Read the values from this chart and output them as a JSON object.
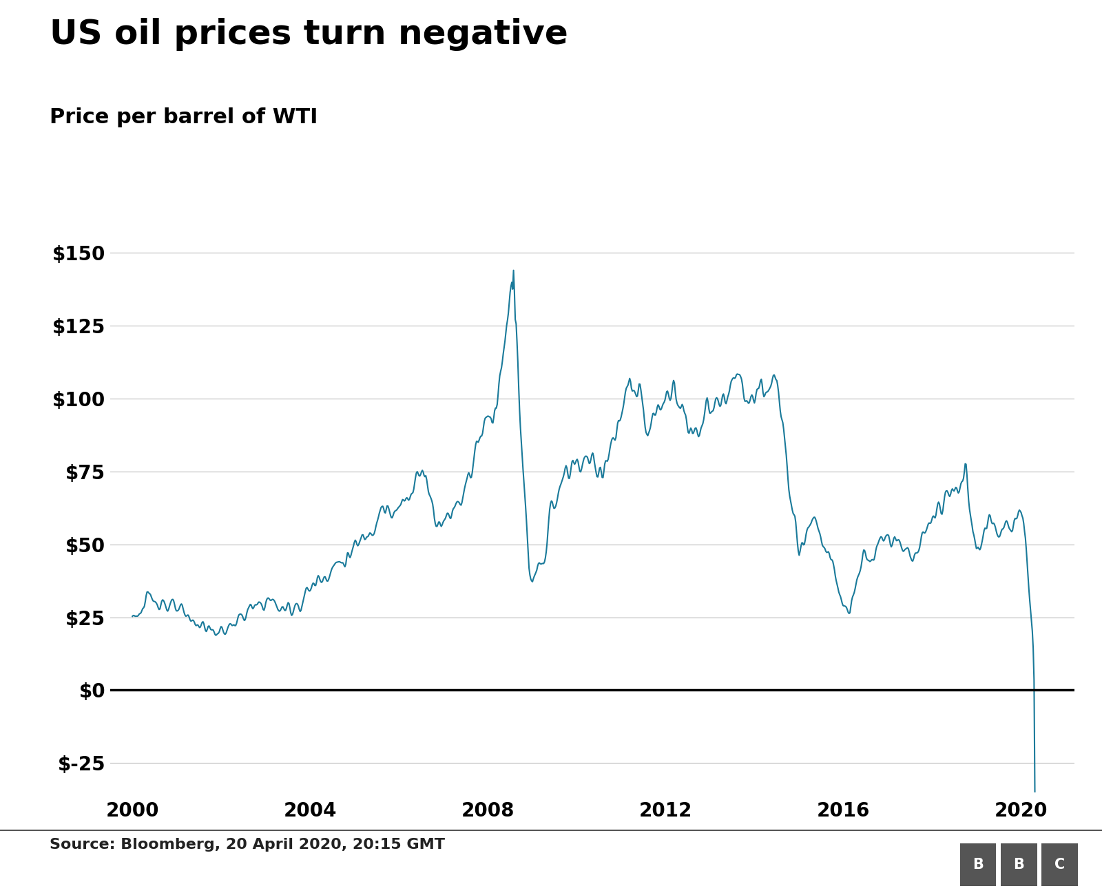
{
  "title": "US oil prices turn negative",
  "subtitle": "Price per barrel of WTI",
  "source_text": "Source: Bloomberg, 20 April 2020, 20:15 GMT",
  "line_color": "#1a7a9a",
  "background_color": "#ffffff",
  "zero_line_color": "#000000",
  "grid_color": "#bbbbbb",
  "title_fontsize": 36,
  "subtitle_fontsize": 22,
  "tick_fontsize": 20,
  "source_fontsize": 16,
  "ylim": [
    -35,
    160
  ],
  "yticks": [
    -25,
    0,
    25,
    50,
    75,
    100,
    125,
    150
  ],
  "xticks": [
    2000,
    2004,
    2008,
    2012,
    2016,
    2020
  ],
  "line_width": 1.5
}
